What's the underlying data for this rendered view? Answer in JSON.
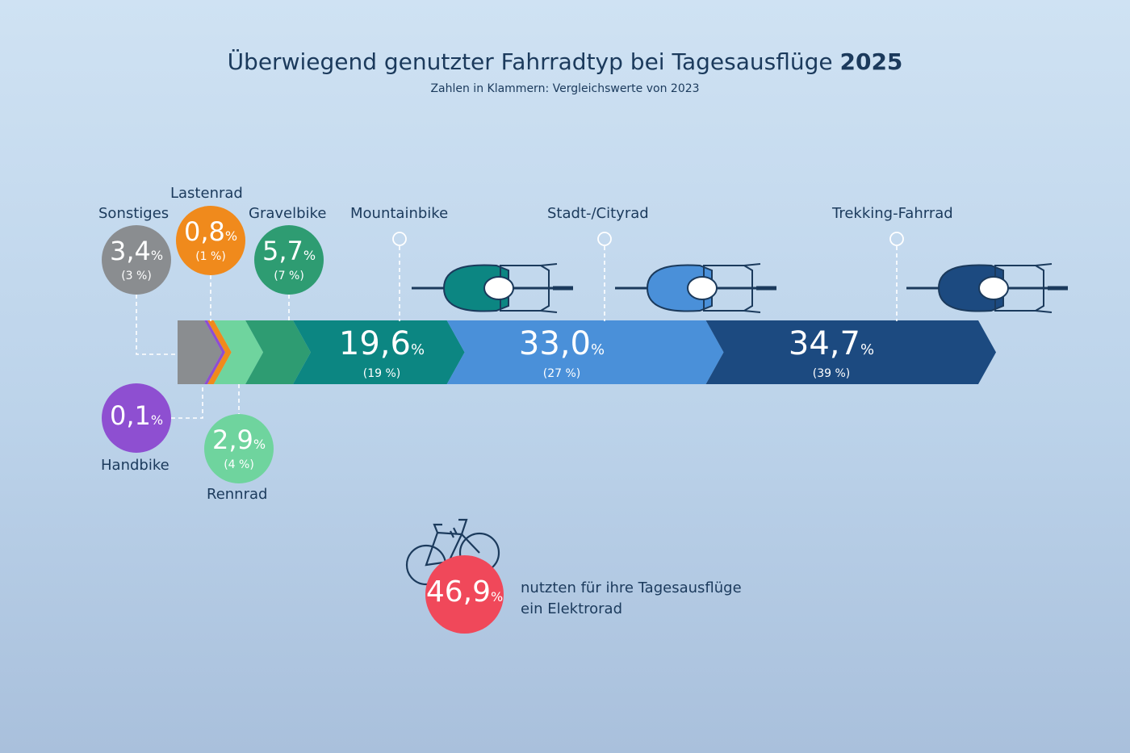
{
  "title": "Überwiegend genutzter Fahrradtyp bei Tagesausflüge",
  "title_year": "2025",
  "subtitle": "Zahlen in Klammern: Vergleichswerte von 2023",
  "chart_data": {
    "type": "bar",
    "stacked": true,
    "unit": "%",
    "categories": [
      "Sonstiges",
      "Handbike",
      "Lastenrad",
      "Rennrad",
      "Gravelbike",
      "Mountainbike",
      "Stadt-/Cityrad",
      "Trekking-Fahrrad"
    ],
    "values_2025": [
      3.4,
      0.1,
      0.8,
      2.9,
      5.7,
      19.6,
      33.0,
      34.7
    ],
    "values_2023": [
      3,
      null,
      1,
      4,
      7,
      19,
      27,
      39
    ],
    "labels_2025": [
      "3,4",
      "0,1",
      "0,8",
      "2,9",
      "5,7",
      "19,6",
      "33,0",
      "34,7"
    ],
    "labels_2023": [
      "(3 %)",
      "",
      "(1 %)",
      "(4 %)",
      "(7 %)",
      "(19 %)",
      "(27 %)",
      "(39 %)"
    ],
    "colors": [
      "#8a8d90",
      "#8e4fd1",
      "#f08a1c",
      "#6fd49e",
      "#2e9c72",
      "#0c8682",
      "#4a90d9",
      "#1c4a80"
    ],
    "percent_sign": "%"
  },
  "ebike": {
    "value": "46,9",
    "percent_sign": "%",
    "line1": "nutzten für ihre Tagesausflüge",
    "line2": "ein Elektrorad",
    "color": "#f0485a",
    "icon": "e-bike-icon"
  },
  "bike_icon": "bicycle-top-view-icon"
}
